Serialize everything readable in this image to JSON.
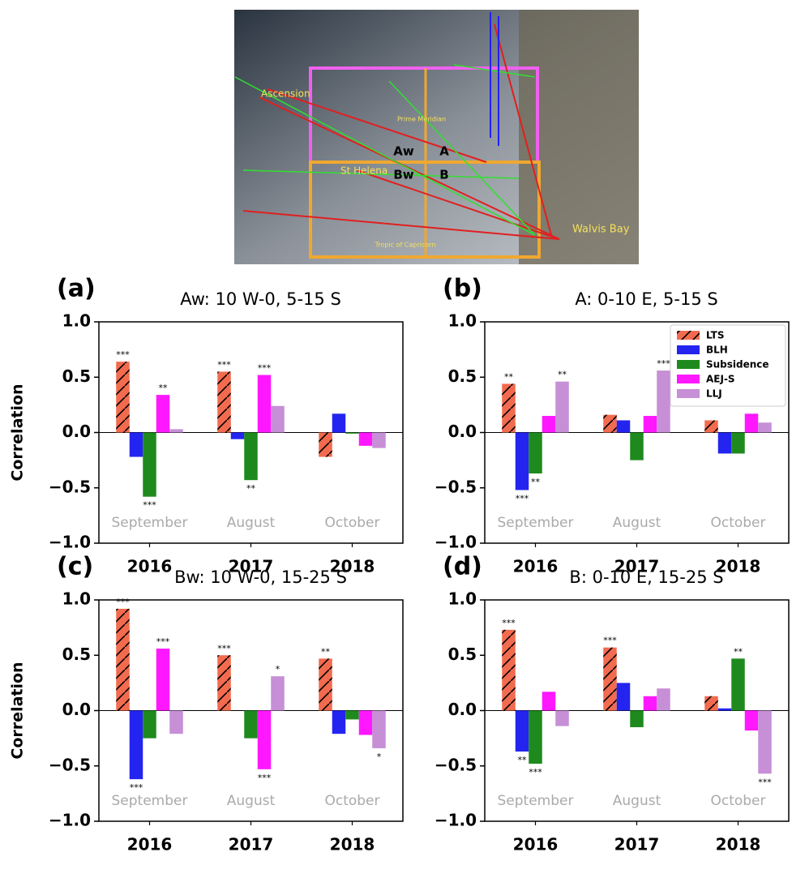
{
  "map": {
    "labels": [
      "Ascension",
      "St Helena",
      "Walvis Bay",
      "Aw",
      "A",
      "Bw",
      "B",
      "Prime Meridian",
      "Tropic of Capricorn"
    ]
  },
  "chart_data": [
    {
      "type": "bar",
      "panel_label": "(a)",
      "title": "Aw: 10 W-0, 5-15 S",
      "ylabel": "Correlation",
      "categories": [
        "2016",
        "2017",
        "2018"
      ],
      "category_notes": [
        "September",
        "August",
        "October"
      ],
      "series": [
        {
          "name": "LTS",
          "color": "#f26b4f",
          "hatch": true,
          "values": [
            0.64,
            0.55,
            -0.22
          ],
          "stars": [
            "***",
            "***",
            null
          ]
        },
        {
          "name": "BLH",
          "color": "#2424f0",
          "values": [
            -0.22,
            -0.06,
            0.17
          ],
          "stars": [
            null,
            null,
            null
          ]
        },
        {
          "name": "Subsidence",
          "color": "#1e8a1e",
          "values": [
            -0.58,
            -0.43,
            -0.01
          ],
          "stars": [
            "***",
            "**",
            null
          ]
        },
        {
          "name": "AEJ-S",
          "color": "#ff18ff",
          "values": [
            0.34,
            0.52,
            -0.12
          ],
          "stars": [
            "**",
            "***",
            null
          ]
        },
        {
          "name": "LLJ",
          "color": "#c68fd6",
          "values": [
            0.03,
            0.24,
            -0.14
          ],
          "stars": [
            null,
            null,
            null
          ]
        }
      ],
      "ylim": [
        -1,
        1
      ],
      "yticks": [
        {
          "value": -1,
          "label": "−1.0"
        },
        {
          "value": -0.5,
          "label": "−0.5"
        },
        {
          "value": 0,
          "label": "0.0"
        },
        {
          "value": 0.5,
          "label": "0.5"
        },
        {
          "value": 1,
          "label": "1.0"
        }
      ]
    },
    {
      "type": "bar",
      "panel_label": "(b)",
      "title": "A: 0-10 E, 5-15 S",
      "legend": "upper right",
      "categories": [
        "2016",
        "2017",
        "2018"
      ],
      "category_notes": [
        "September",
        "August",
        "October"
      ],
      "series": [
        {
          "name": "LTS",
          "color": "#f26b4f",
          "hatch": true,
          "values": [
            0.44,
            0.16,
            0.11
          ],
          "stars": [
            "**",
            null,
            null
          ]
        },
        {
          "name": "BLH",
          "color": "#2424f0",
          "values": [
            -0.52,
            0.11,
            -0.19
          ],
          "stars": [
            "***",
            null,
            null
          ]
        },
        {
          "name": "Subsidence",
          "color": "#1e8a1e",
          "values": [
            -0.37,
            -0.25,
            -0.19
          ],
          "stars": [
            "**",
            null,
            null
          ]
        },
        {
          "name": "AEJ-S",
          "color": "#ff18ff",
          "values": [
            0.15,
            0.15,
            0.17
          ],
          "stars": [
            null,
            null,
            null
          ]
        },
        {
          "name": "LLJ",
          "color": "#c68fd6",
          "values": [
            0.46,
            0.56,
            0.09
          ],
          "stars": [
            "**",
            "***",
            null
          ]
        }
      ],
      "ylim": [
        -1,
        1
      ],
      "yticks": [
        {
          "value": -1,
          "label": "−1.0"
        },
        {
          "value": -0.5,
          "label": "−0.5"
        },
        {
          "value": 0,
          "label": "0.0"
        },
        {
          "value": 0.5,
          "label": "0.5"
        },
        {
          "value": 1,
          "label": "1.0"
        }
      ]
    },
    {
      "type": "bar",
      "panel_label": "(c)",
      "title": "Bw: 10 W-0, 15-25 S",
      "ylabel": "Correlation",
      "categories": [
        "2016",
        "2017",
        "2018"
      ],
      "category_notes": [
        "September",
        "August",
        "October"
      ],
      "series": [
        {
          "name": "LTS",
          "color": "#f26b4f",
          "hatch": true,
          "values": [
            0.92,
            0.5,
            0.47
          ],
          "stars": [
            "***",
            "***",
            "**"
          ]
        },
        {
          "name": "BLH",
          "color": "#2424f0",
          "values": [
            -0.62,
            0.0,
            -0.21
          ],
          "stars": [
            "***",
            null,
            null
          ]
        },
        {
          "name": "Subsidence",
          "color": "#1e8a1e",
          "values": [
            -0.25,
            -0.25,
            -0.08
          ],
          "stars": [
            null,
            null,
            null
          ]
        },
        {
          "name": "AEJ-S",
          "color": "#ff18ff",
          "values": [
            0.56,
            -0.53,
            -0.22
          ],
          "stars": [
            "***",
            "***",
            null
          ]
        },
        {
          "name": "LLJ",
          "color": "#c68fd6",
          "values": [
            -0.21,
            0.31,
            -0.34
          ],
          "stars": [
            null,
            "*",
            "*"
          ]
        }
      ],
      "ylim": [
        -1,
        1
      ],
      "yticks": [
        {
          "value": -1,
          "label": "−1.0"
        },
        {
          "value": -0.5,
          "label": "−0.5"
        },
        {
          "value": 0,
          "label": "0.0"
        },
        {
          "value": 0.5,
          "label": "0.5"
        },
        {
          "value": 1,
          "label": "1.0"
        }
      ]
    },
    {
      "type": "bar",
      "panel_label": "(d)",
      "title": "B: 0-10 E, 15-25 S",
      "categories": [
        "2016",
        "2017",
        "2018"
      ],
      "category_notes": [
        "September",
        "August",
        "October"
      ],
      "series": [
        {
          "name": "LTS",
          "color": "#f26b4f",
          "hatch": true,
          "values": [
            0.73,
            0.57,
            0.13
          ],
          "stars": [
            "***",
            "***",
            null
          ]
        },
        {
          "name": "BLH",
          "color": "#2424f0",
          "values": [
            -0.37,
            0.25,
            0.02
          ],
          "stars": [
            "**",
            null,
            null
          ]
        },
        {
          "name": "Subsidence",
          "color": "#1e8a1e",
          "values": [
            -0.48,
            -0.15,
            0.47
          ],
          "stars": [
            "***",
            null,
            "**"
          ]
        },
        {
          "name": "AEJ-S",
          "color": "#ff18ff",
          "values": [
            0.17,
            0.13,
            -0.18
          ],
          "stars": [
            null,
            null,
            null
          ]
        },
        {
          "name": "LLJ",
          "color": "#c68fd6",
          "values": [
            -0.14,
            0.2,
            -0.57
          ],
          "stars": [
            null,
            null,
            "***"
          ]
        }
      ],
      "ylim": [
        -1,
        1
      ],
      "yticks": [
        {
          "value": -1,
          "label": "−1.0"
        },
        {
          "value": -0.5,
          "label": "−0.5"
        },
        {
          "value": 0,
          "label": "0.0"
        },
        {
          "value": 0.5,
          "label": "0.5"
        },
        {
          "value": 1,
          "label": "1.0"
        }
      ]
    }
  ]
}
